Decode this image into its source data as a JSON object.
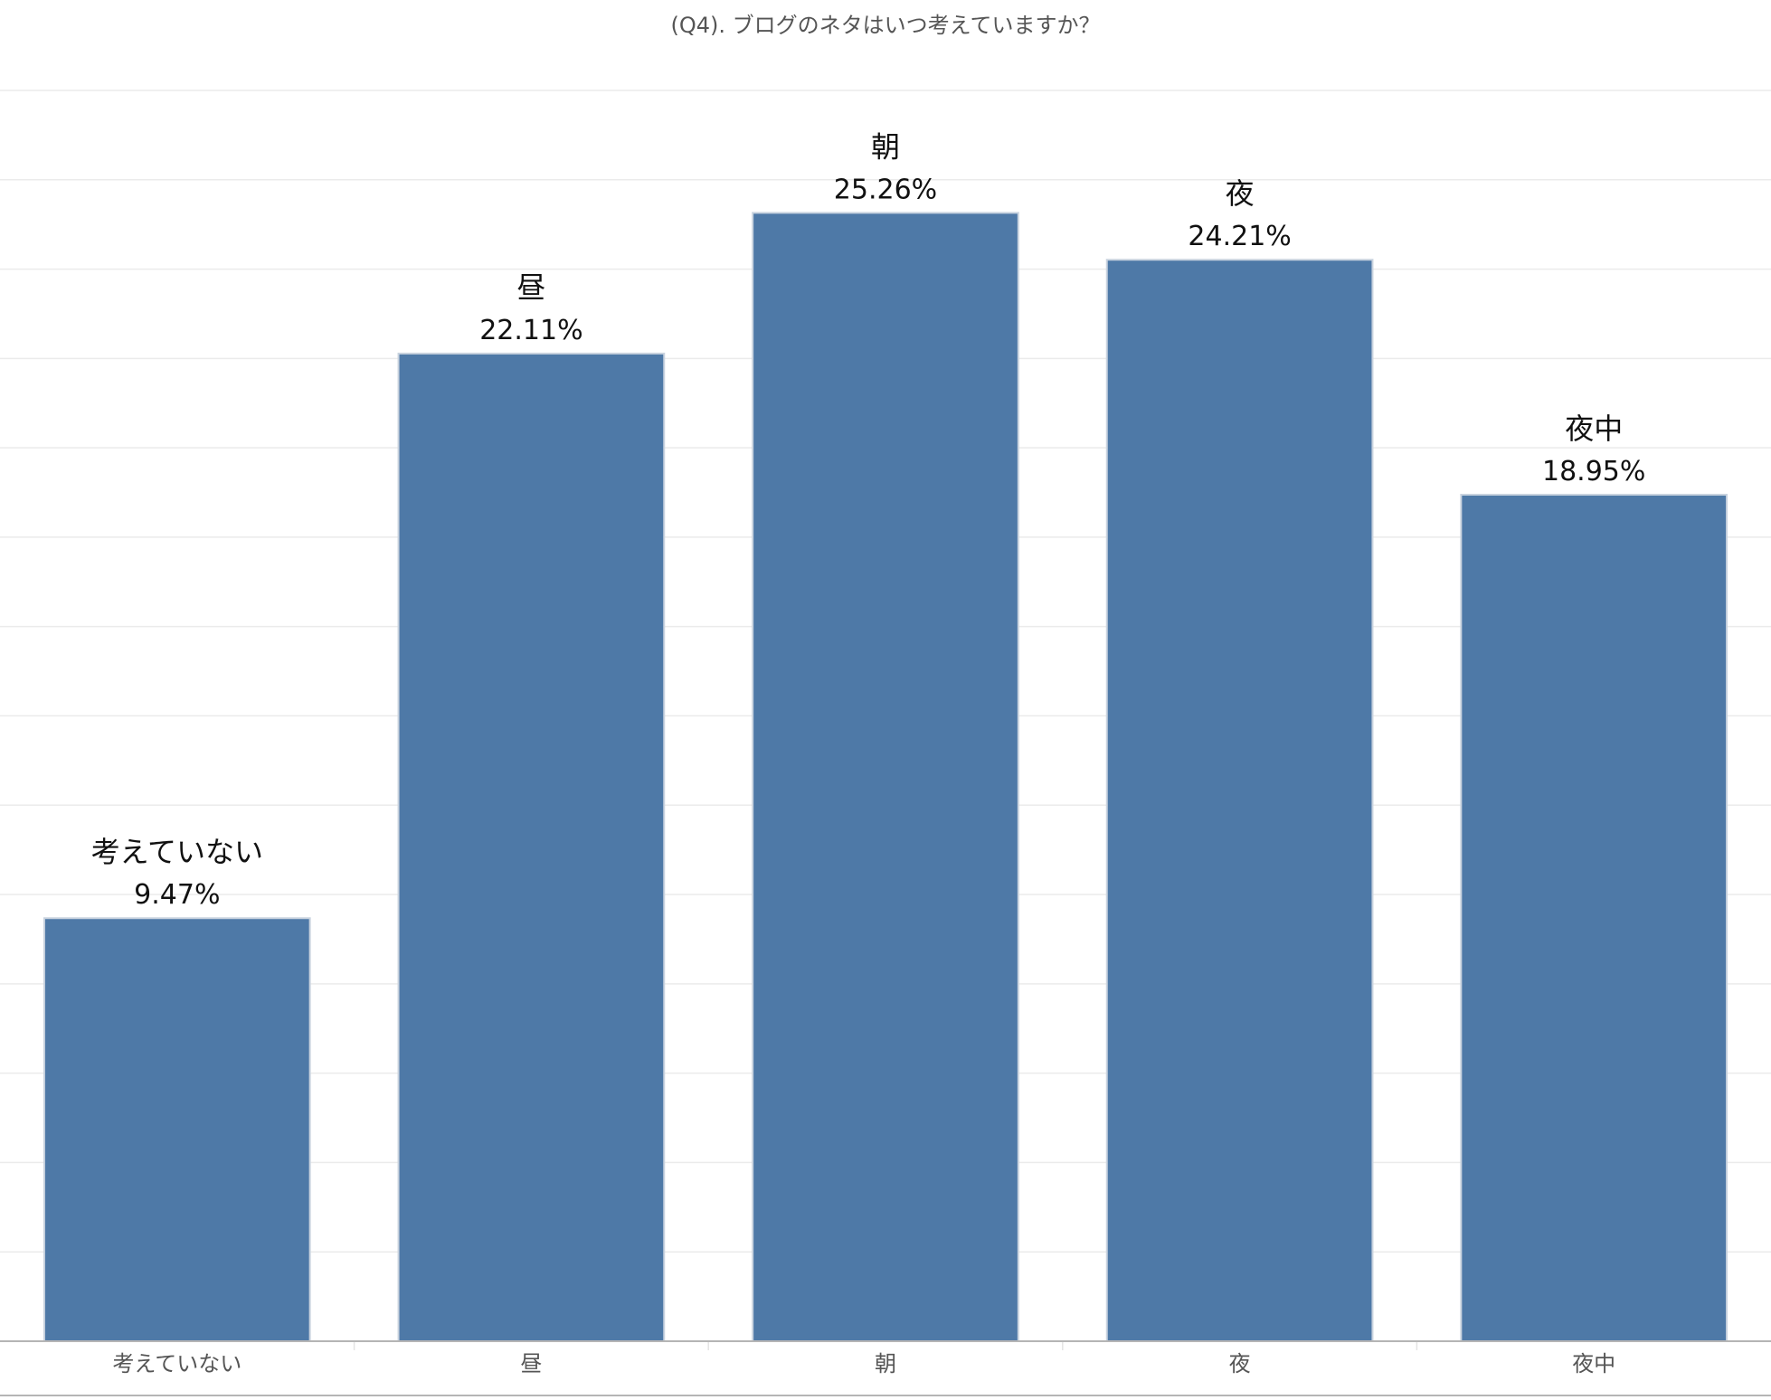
{
  "chart_data": {
    "type": "bar",
    "title": "(Q4). ブログのネタはいつ考えていますか？",
    "categories": [
      "考えていない",
      "昼",
      "朝",
      "夜",
      "夜中"
    ],
    "values": [
      9.47,
      22.11,
      25.26,
      24.21,
      18.95
    ],
    "value_labels": [
      "9.47%",
      "22.11%",
      "25.26%",
      "24.21%",
      "18.95%"
    ],
    "unit": "%",
    "ylim": [
      0,
      28
    ],
    "grid": true,
    "legend": "none",
    "bar_color": "#4e79a7"
  }
}
